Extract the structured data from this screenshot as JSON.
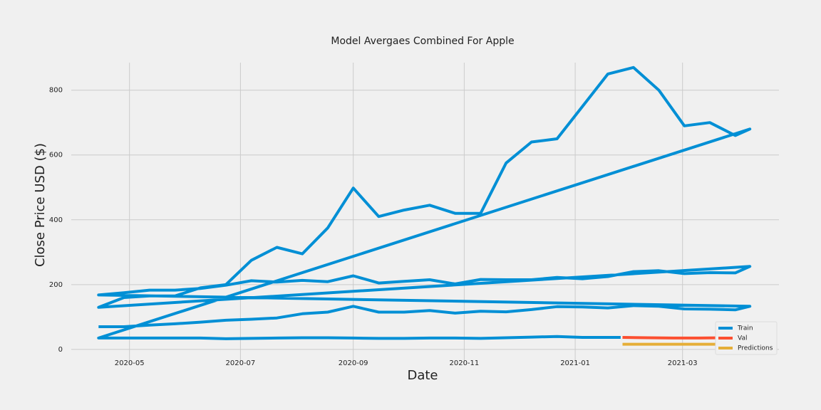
{
  "chart_data": {
    "type": "line",
    "title": "Model Avergaes Combined For Apple",
    "x_label": "Date",
    "y_label": "Close Price USD ($)",
    "xlim": [
      "2020-03-30",
      "2021-04-23"
    ],
    "xticks": [
      {
        "value": "2020-05-01",
        "label": "2020-05"
      },
      {
        "value": "2020-07-01",
        "label": "2020-07"
      },
      {
        "value": "2020-09-01",
        "label": "2020-09"
      },
      {
        "value": "2020-11-01",
        "label": "2020-11"
      },
      {
        "value": "2021-01-01",
        "label": "2021-01"
      },
      {
        "value": "2021-03-01",
        "label": "2021-03"
      }
    ],
    "ylim": [
      -42,
      885
    ],
    "yticks": [
      0,
      200,
      400,
      600,
      800
    ],
    "grid": true,
    "legend": "lower right",
    "series": [
      {
        "name": "Train",
        "color": "#008fd5",
        "x": [
          "2020-04-14",
          "2020-04-28",
          "2020-05-12",
          "2020-05-26",
          "2020-06-09",
          "2020-06-23",
          "2020-07-07",
          "2020-07-21",
          "2020-08-04",
          "2020-08-18",
          "2020-09-01",
          "2020-09-15",
          "2020-09-29",
          "2020-10-13",
          "2020-10-27",
          "2020-11-10",
          "2020-11-24",
          "2020-12-08",
          "2020-12-22",
          "2021-01-05",
          "2021-01-19",
          "2021-02-02",
          "2021-02-16",
          "2021-03-02",
          "2021-03-16",
          "2021-03-30",
          "2021-04-07",
          "2020-04-14",
          "2020-04-28",
          "2020-05-12",
          "2020-05-26",
          "2020-06-09",
          "2020-06-23",
          "2020-07-07",
          "2020-07-21",
          "2020-08-04",
          "2020-08-18",
          "2020-09-01",
          "2020-09-15",
          "2020-09-29",
          "2020-10-13",
          "2020-10-27",
          "2020-11-10",
          "2020-11-24",
          "2020-12-08",
          "2020-12-22",
          "2021-01-05",
          "2021-01-19",
          "2021-02-02",
          "2021-02-16",
          "2021-03-02",
          "2021-03-16",
          "2021-03-30",
          "2021-04-07",
          "2020-04-14",
          "2020-04-28",
          "2020-05-12",
          "2020-05-26",
          "2020-06-09",
          "2020-06-23",
          "2020-07-07",
          "2020-07-21",
          "2020-08-04",
          "2020-08-18",
          "2020-09-01",
          "2020-09-15",
          "2020-09-29",
          "2020-10-13",
          "2020-10-27",
          "2020-11-10",
          "2020-11-24",
          "2020-12-08",
          "2020-12-22",
          "2021-01-05",
          "2021-01-19",
          "2021-02-02",
          "2021-02-16",
          "2021-03-02",
          "2021-03-16",
          "2021-03-30",
          "2021-04-07",
          "2020-04-14",
          "2020-04-28",
          "2020-05-12",
          "2020-05-26",
          "2020-06-09",
          "2020-06-23",
          "2020-07-07",
          "2020-07-21",
          "2020-08-04",
          "2020-08-18",
          "2020-09-01",
          "2020-09-15",
          "2020-09-29",
          "2020-10-13",
          "2020-10-27",
          "2020-11-10",
          "2020-11-24",
          "2020-12-08",
          "2020-12-22",
          "2021-01-05",
          "2021-01-19",
          "2021-01-26"
        ],
        "values": [
          70,
          70,
          75,
          79,
          84,
          90,
          93,
          97,
          110,
          115,
          133,
          115,
          115,
          120,
          112,
          118,
          116,
          123,
          132,
          131,
          128,
          135,
          133,
          125,
          124,
          122,
          133,
          168,
          175,
          183,
          183,
          188,
          198,
          212,
          208,
          213,
          209,
          227,
          205,
          210,
          215,
          202,
          216,
          215,
          215,
          222,
          218,
          225,
          240,
          243,
          234,
          237,
          236,
          256,
          130,
          160,
          165,
          165,
          190,
          200,
          275,
          315,
          295,
          375,
          498,
          410,
          430,
          445,
          420,
          420,
          575,
          640,
          650,
          750,
          850,
          870,
          800,
          690,
          700,
          660,
          680,
          35,
          35,
          35,
          35,
          35,
          33,
          34,
          35,
          36,
          36,
          35,
          34,
          34,
          35,
          35,
          34,
          36,
          38,
          40,
          37,
          37,
          37
        ]
      },
      {
        "name": "Val",
        "color": "#fc4f30",
        "x": [
          "2021-01-27",
          "2021-02-10",
          "2021-02-24",
          "2021-03-10",
          "2021-03-24",
          "2021-04-07"
        ],
        "values": [
          37,
          36,
          35,
          35,
          36,
          37
        ]
      },
      {
        "name": "Predictions",
        "color": "#e5ae38",
        "x": [
          "2021-01-27",
          "2021-02-10",
          "2021-02-24",
          "2021-03-10",
          "2021-03-24",
          "2021-04-07"
        ],
        "values": [
          16,
          16,
          16,
          16,
          16,
          16
        ]
      }
    ]
  }
}
